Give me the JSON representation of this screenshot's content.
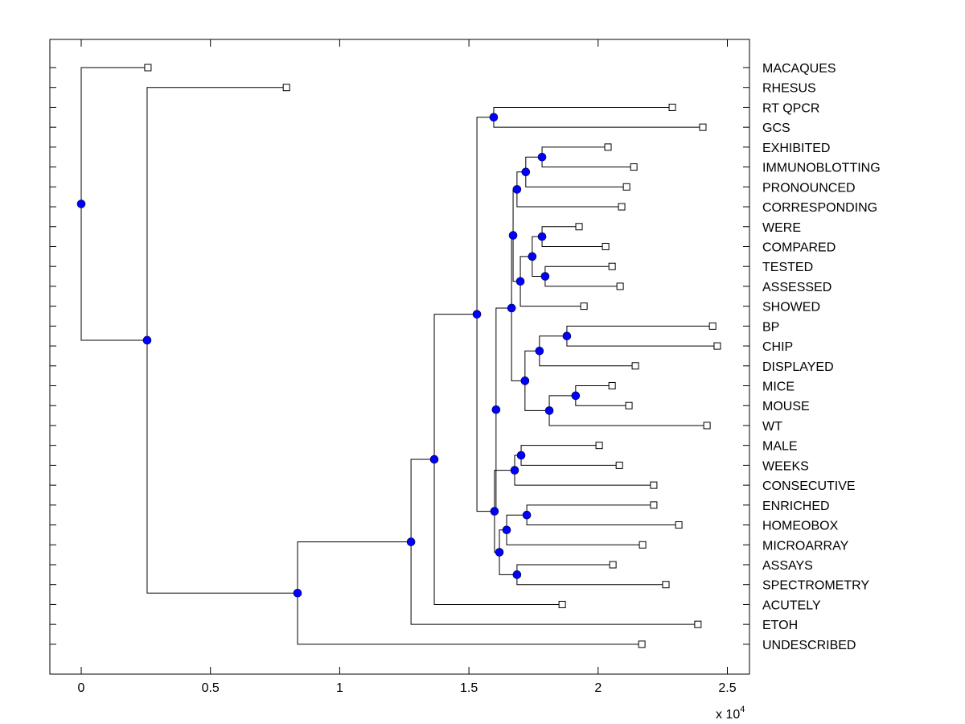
{
  "chart_data": {
    "type": "dendrogram",
    "title": "",
    "xlabel": "",
    "ylabel": "",
    "x_scale_note": "x 10^4",
    "x_multiplier_base": "x 10",
    "x_multiplier_exp": "4",
    "xlim": [
      -0.12,
      2.58
    ],
    "xticks": [
      0,
      0.5,
      1,
      1.5,
      2,
      2.5
    ],
    "xtick_labels": [
      "0",
      "0.5",
      "1",
      "1.5",
      "2",
      "2.5"
    ],
    "grid": false,
    "leaf_marker": "open-square",
    "node_marker": "filled-circle",
    "node_color": "#0000ff",
    "line_color": "#000000",
    "leaves": [
      {
        "label": "MACAQUES",
        "x": 0.258
      },
      {
        "label": "RHESUS",
        "x": 0.794
      },
      {
        "label": "RT QPCR",
        "x": 2.287
      },
      {
        "label": "GCS",
        "x": 2.405
      },
      {
        "label": "EXHIBITED",
        "x": 2.038
      },
      {
        "label": "IMMUNOBLOTTING",
        "x": 2.138
      },
      {
        "label": "PRONOUNCED",
        "x": 2.11
      },
      {
        "label": "CORRESPONDING",
        "x": 2.091
      },
      {
        "label": "WERE",
        "x": 1.926
      },
      {
        "label": "COMPARED",
        "x": 2.029
      },
      {
        "label": "TESTED",
        "x": 2.054
      },
      {
        "label": "ASSESSED",
        "x": 2.085
      },
      {
        "label": "SHOWED",
        "x": 1.945
      },
      {
        "label": "BP",
        "x": 2.443
      },
      {
        "label": "CHIP",
        "x": 2.461
      },
      {
        "label": "DISPLAYED",
        "x": 2.144
      },
      {
        "label": "MICE",
        "x": 2.054
      },
      {
        "label": "MOUSE",
        "x": 2.119
      },
      {
        "label": "WT",
        "x": 2.421
      },
      {
        "label": "MALE",
        "x": 2.004
      },
      {
        "label": "WEEKS",
        "x": 2.082
      },
      {
        "label": "CONSECUTIVE",
        "x": 2.215
      },
      {
        "label": "ENRICHED",
        "x": 2.215
      },
      {
        "label": "HOMEOBOX",
        "x": 2.312
      },
      {
        "label": "MICROARRAY",
        "x": 2.172
      },
      {
        "label": "ASSAYS",
        "x": 2.057
      },
      {
        "label": "SPECTROMETRY",
        "x": 2.262
      },
      {
        "label": "ACUTELY",
        "x": 1.861
      },
      {
        "label": "ETOH",
        "x": 2.386
      },
      {
        "label": "UNDESCRIBED",
        "x": 2.169
      }
    ],
    "nodes": [
      {
        "id": "n_gcs",
        "x": 1.596,
        "children": [
          "L2",
          "L3"
        ]
      },
      {
        "id": "n_exh",
        "x": 1.783,
        "children": [
          "L4",
          "L5"
        ]
      },
      {
        "id": "n_pro",
        "x": 1.72,
        "children": [
          "n_exh",
          "L6"
        ]
      },
      {
        "id": "n_cor",
        "x": 1.686,
        "children": [
          "n_pro",
          "L7"
        ]
      },
      {
        "id": "n_were",
        "x": 1.783,
        "children": [
          "L8",
          "L9"
        ]
      },
      {
        "id": "n_test",
        "x": 1.795,
        "children": [
          "L10",
          "L11"
        ]
      },
      {
        "id": "n_wt4",
        "x": 1.745,
        "children": [
          "n_were",
          "n_test"
        ]
      },
      {
        "id": "n_show",
        "x": 1.699,
        "children": [
          "n_wt4",
          "L12"
        ]
      },
      {
        "id": "n_up",
        "x": 1.671,
        "children": [
          "n_cor",
          "n_show"
        ]
      },
      {
        "id": "n_bp",
        "x": 1.879,
        "children": [
          "L13",
          "L14"
        ]
      },
      {
        "id": "n_disp",
        "x": 1.773,
        "children": [
          "n_bp",
          "L15"
        ]
      },
      {
        "id": "n_mice",
        "x": 1.913,
        "children": [
          "L16",
          "L17"
        ]
      },
      {
        "id": "n_wt",
        "x": 1.811,
        "children": [
          "n_mice",
          "L18"
        ]
      },
      {
        "id": "n_mid",
        "x": 1.717,
        "children": [
          "n_disp",
          "n_wt"
        ]
      },
      {
        "id": "n_a",
        "x": 1.665,
        "children": [
          "n_up",
          "n_mid"
        ]
      },
      {
        "id": "n_b",
        "x": 1.605,
        "children": [
          "n_a",
          "n_c"
        ]
      },
      {
        "id": "n_male",
        "x": 1.702,
        "children": [
          "L19",
          "L20"
        ]
      },
      {
        "id": "n_cons",
        "x": 1.677,
        "children": [
          "n_male",
          "L21"
        ]
      },
      {
        "id": "n_enr",
        "x": 1.724,
        "children": [
          "L22",
          "L23"
        ]
      },
      {
        "id": "n_micro",
        "x": 1.646,
        "children": [
          "n_enr",
          "L24"
        ]
      },
      {
        "id": "n_assay",
        "x": 1.686,
        "children": [
          "L25",
          "L26"
        ]
      },
      {
        "id": "n_low",
        "x": 1.618,
        "children": [
          "n_micro",
          "n_assay"
        ]
      },
      {
        "id": "n_c",
        "x": 1.599,
        "children": [
          "n_cons",
          "n_low"
        ]
      },
      {
        "id": "n_big",
        "x": 1.531,
        "children": [
          "n_gcs",
          "n_c"
        ]
      },
      {
        "id": "n_acu",
        "x": 1.366,
        "children": [
          "n_big",
          "L27"
        ]
      },
      {
        "id": "n_etoh",
        "x": 1.276,
        "children": [
          "n_acu",
          "L28"
        ]
      },
      {
        "id": "n_und",
        "x": 0.837,
        "children": [
          "n_etoh",
          "L29"
        ]
      },
      {
        "id": "n_rh",
        "x": 0.255,
        "children": [
          "L1",
          "n_und"
        ]
      },
      {
        "id": "n_root",
        "x": 0.0,
        "children": [
          "L0",
          "n_rh"
        ]
      }
    ]
  }
}
